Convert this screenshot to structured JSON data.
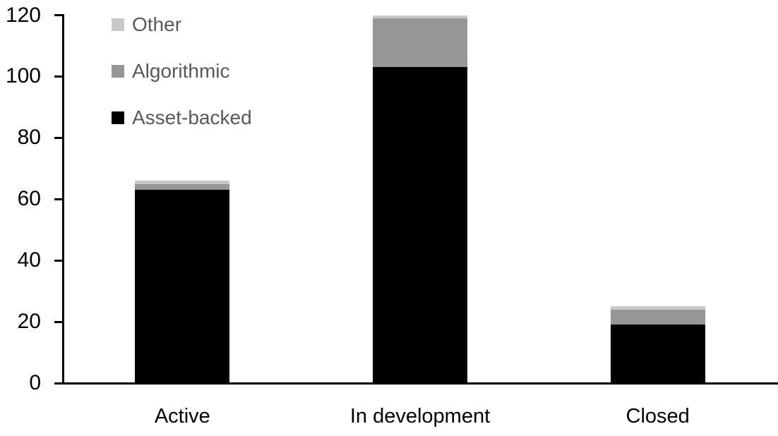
{
  "chart_data": {
    "type": "bar",
    "stacked": true,
    "title": "",
    "xlabel": "",
    "ylabel": "",
    "grid": false,
    "background_color": "#ffffff",
    "axis_color": "#000000",
    "categories": [
      "Active",
      "In development",
      "Closed"
    ],
    "series": [
      {
        "name": "Asset-backed",
        "color": "#000000",
        "values": [
          63,
          103,
          19
        ]
      },
      {
        "name": "Algorithmic",
        "color": "#969696",
        "values": [
          2,
          16,
          5
        ]
      },
      {
        "name": "Other",
        "color": "#c8c8c8",
        "values": [
          1,
          1,
          1
        ]
      }
    ],
    "totals": [
      66,
      120,
      25
    ],
    "yticks": [
      0,
      20,
      40,
      60,
      80,
      100,
      120
    ],
    "ylim": [
      0,
      120
    ],
    "legend": {
      "position": "top-left",
      "order": [
        "Other",
        "Algorithmic",
        "Asset-backed"
      ],
      "text_color": "#595959"
    }
  }
}
